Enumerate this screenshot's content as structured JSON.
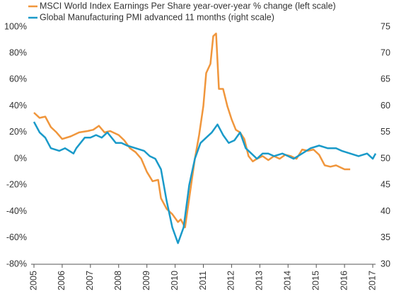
{
  "chart_data": {
    "type": "line",
    "legend": "top-left",
    "xlim": [
      2005,
      2017
    ],
    "xticks": [
      2005,
      2006,
      2007,
      2008,
      2009,
      2010,
      2011,
      2012,
      2013,
      2014,
      2015,
      2016,
      2017
    ],
    "ylim": [
      -80,
      100
    ],
    "yticks": [
      {
        "value": -80,
        "label": "-80%"
      },
      {
        "value": -60,
        "label": "-60%"
      },
      {
        "value": -40,
        "label": "-40%"
      },
      {
        "value": -20,
        "label": "-20%"
      },
      {
        "value": 0,
        "label": "0%"
      },
      {
        "value": 20,
        "label": "20%"
      },
      {
        "value": 40,
        "label": "40%"
      },
      {
        "value": 60,
        "label": "60%"
      },
      {
        "value": 80,
        "label": "80%"
      },
      {
        "value": 100,
        "label": "100%"
      }
    ],
    "y2lim": [
      30,
      75
    ],
    "y2ticks": [
      30,
      35,
      40,
      45,
      50,
      55,
      60,
      65,
      70,
      75
    ],
    "series": [
      {
        "name": "MSCI World Index Earnings Per Share year-over-year % change (left scale)",
        "color": "#f0963c",
        "x": [
          2005.0,
          2005.2,
          2005.4,
          2005.6,
          2005.8,
          2006.0,
          2006.3,
          2006.6,
          2006.9,
          2007.1,
          2007.3,
          2007.5,
          2007.7,
          2008.0,
          2008.2,
          2008.4,
          2008.6,
          2008.8,
          2009.0,
          2009.2,
          2009.4,
          2009.5,
          2009.7,
          2009.9,
          2010.1,
          2010.2,
          2010.35,
          2010.5,
          2010.6,
          2010.7,
          2010.85,
          2011.0,
          2011.1,
          2011.25,
          2011.35,
          2011.45,
          2011.55,
          2011.7,
          2011.85,
          2012.0,
          2012.15,
          2012.3,
          2012.45,
          2012.6,
          2012.75,
          2012.9,
          2013.1,
          2013.3,
          2013.5,
          2013.7,
          2013.9,
          2014.1,
          2014.3,
          2014.5,
          2014.7,
          2014.9,
          2015.1,
          2015.3,
          2015.5,
          2015.7,
          2015.9,
          2016.0,
          2016.2
        ],
        "values": [
          35,
          31,
          32,
          24,
          20,
          15,
          17,
          20,
          21,
          22,
          25,
          20,
          21,
          18,
          14,
          8,
          5,
          0,
          -10,
          -17,
          -16,
          -30,
          -38,
          -42,
          -48,
          -46,
          -52,
          -30,
          -15,
          0,
          18,
          40,
          65,
          72,
          93,
          95,
          53,
          53,
          40,
          30,
          22,
          20,
          15,
          2,
          -2,
          0,
          2,
          -1,
          2,
          0,
          3,
          2,
          0,
          7,
          6,
          7,
          3,
          -5,
          -6,
          -5,
          -7,
          -8,
          -8
        ]
      },
      {
        "name": "Global Manufacturing PMI advanced 11 months (right scale)",
        "color": "#1a9ac9",
        "axis": "y2",
        "x": [
          2005.0,
          2005.2,
          2005.4,
          2005.6,
          2005.9,
          2006.1,
          2006.4,
          2006.5,
          2006.8,
          2007.0,
          2007.2,
          2007.4,
          2007.6,
          2007.9,
          2008.1,
          2008.3,
          2008.6,
          2008.9,
          2009.1,
          2009.3,
          2009.5,
          2009.7,
          2009.9,
          2010.1,
          2010.3,
          2010.5,
          2010.7,
          2010.9,
          2011.1,
          2011.3,
          2011.5,
          2011.7,
          2011.9,
          2012.1,
          2012.3,
          2012.5,
          2012.7,
          2012.9,
          2013.1,
          2013.3,
          2013.5,
          2013.8,
          2014.0,
          2014.2,
          2014.5,
          2014.8,
          2015.1,
          2015.4,
          2015.7,
          2015.9,
          2016.2,
          2016.5,
          2016.8,
          2017.0,
          2017.1
        ],
        "values": [
          57,
          55,
          54,
          52,
          51.5,
          52,
          51,
          52,
          54,
          54,
          54.5,
          54,
          55,
          53,
          53,
          52.5,
          52,
          51.5,
          50.5,
          50,
          48,
          42,
          37,
          34,
          37,
          45,
          50,
          53,
          54,
          55,
          56.5,
          54.5,
          53,
          53.5,
          55,
          52,
          51,
          50,
          51,
          51,
          50.5,
          51,
          50.5,
          50,
          51,
          52,
          52.5,
          52,
          52,
          51.5,
          51,
          50.5,
          51,
          50,
          51
        ]
      }
    ]
  }
}
